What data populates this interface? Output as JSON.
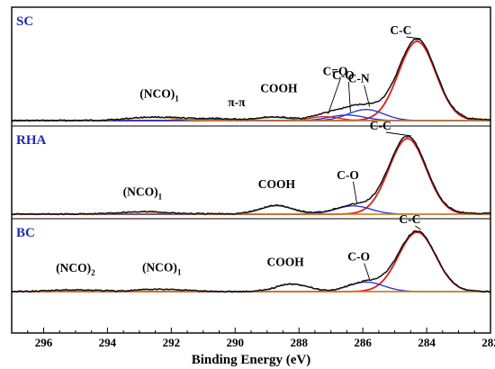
{
  "chart_data": {
    "type": "line",
    "title": "",
    "xlabel": "Binding Energy (eV)",
    "ylabel": "",
    "xlim": [
      297,
      282
    ],
    "x_reversed": true,
    "x_ticks": [
      296,
      294,
      292,
      290,
      288,
      286,
      284,
      282
    ],
    "grid": false,
    "colors": {
      "envelope": "#111111",
      "fit_cc": "#e01b1b",
      "co_cn": "#1f2fd6",
      "cooh": "#6b6b6b",
      "nco": "#e08a1e",
      "baseline_sc_rha": "#f08a00",
      "baseline_bc": "#1a8f8f",
      "sample_label": "#1c2bb0"
    },
    "panels": [
      {
        "sample": "SC",
        "peaks": [
          {
            "label_main": "C-C",
            "label_sub": "",
            "center": 284.3,
            "relative_height": 1.0
          },
          {
            "label_main": "C-N",
            "label_sub": "",
            "center": 285.9,
            "relative_height": 0.14
          },
          {
            "label_main": "C-O",
            "label_sub": "",
            "center": 286.5,
            "relative_height": 0.07
          },
          {
            "label_main": "C=O",
            "label_sub": "",
            "center": 287.2,
            "relative_height": 0.05
          },
          {
            "label_main": "COOH",
            "label_sub": "",
            "center": 288.8,
            "relative_height": 0.04
          },
          {
            "label_main": "π-π",
            "label_sub": "",
            "center": 290.8,
            "relative_height": 0.02
          },
          {
            "label_main": "(NCO)",
            "label_sub": "1",
            "center": 292.6,
            "relative_height": 0.04
          }
        ]
      },
      {
        "sample": "RHA",
        "peaks": [
          {
            "label_main": "C-C",
            "label_sub": "",
            "center": 284.6,
            "relative_height": 1.0
          },
          {
            "label_main": "C-O",
            "label_sub": "",
            "center": 286.3,
            "relative_height": 0.11
          },
          {
            "label_main": "COOH",
            "label_sub": "",
            "center": 288.7,
            "relative_height": 0.11
          },
          {
            "label_main": "(NCO)",
            "label_sub": "1",
            "center": 292.9,
            "relative_height": 0.03
          }
        ]
      },
      {
        "sample": "BC",
        "peaks": [
          {
            "label_main": "C-C",
            "label_sub": "",
            "center": 284.3,
            "relative_height": 1.0
          },
          {
            "label_main": "C-O",
            "label_sub": "",
            "center": 285.9,
            "relative_height": 0.16
          },
          {
            "label_main": "COOH",
            "label_sub": "",
            "center": 288.2,
            "relative_height": 0.13
          },
          {
            "label_main": "(NCO)",
            "label_sub": "1",
            "center": 292.3,
            "relative_height": 0.04
          },
          {
            "label_main": "(NCO)",
            "label_sub": "2",
            "center": 295.0,
            "relative_height": 0.03
          }
        ]
      }
    ]
  }
}
